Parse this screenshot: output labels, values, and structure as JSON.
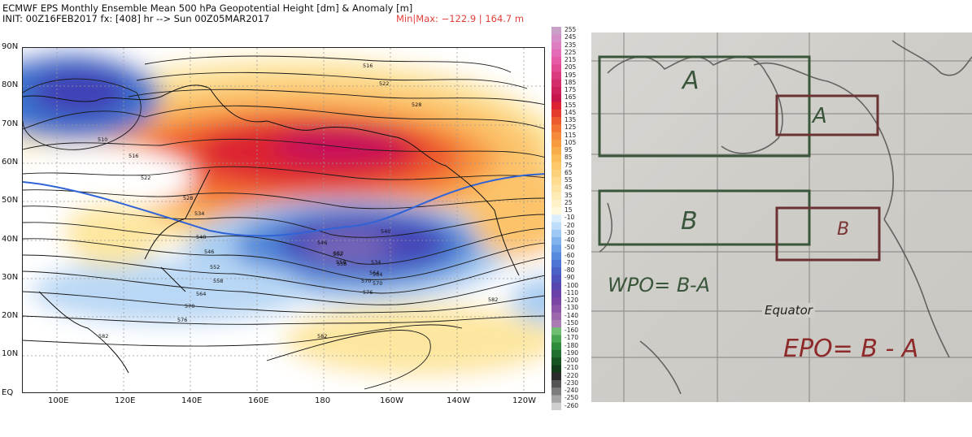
{
  "header": {
    "title": "ECMWF EPS Monthly Ensemble Mean 500 hPa Geopotential Height [dm] & Anomaly [m]",
    "init_line": "INIT: 00Z16FEB2017  fx: [408] hr --> Sun 00Z05MAR2017",
    "minmax": "Min|Max: −122.9 | 164.7 m"
  },
  "map": {
    "lat_labels": [
      "90N",
      "80N",
      "70N",
      "60N",
      "50N",
      "40N",
      "30N",
      "20N",
      "10N",
      "EQ"
    ],
    "lon_labels": [
      "100E",
      "120E",
      "140E",
      "160E",
      "180",
      "160W",
      "140W",
      "120W"
    ],
    "contour_labels": [
      "516",
      "522",
      "528",
      "510",
      "516",
      "522",
      "528",
      "534",
      "540",
      "546",
      "552",
      "558",
      "564",
      "570",
      "576",
      "582",
      "582",
      "540",
      "534",
      "552",
      "558",
      "564",
      "570",
      "576",
      "582",
      "546",
      "552",
      "558",
      "564",
      "570"
    ]
  },
  "colorbar": {
    "labels": [
      "255",
      "245",
      "235",
      "225",
      "215",
      "205",
      "195",
      "185",
      "175",
      "165",
      "155",
      "145",
      "135",
      "125",
      "115",
      "105",
      "95",
      "85",
      "75",
      "65",
      "55",
      "45",
      "35",
      "25",
      "15",
      "-10",
      "-20",
      "-30",
      "-40",
      "-50",
      "-60",
      "-70",
      "-80",
      "-90",
      "-100",
      "-110",
      "-120",
      "-130",
      "-140",
      "-150",
      "-160",
      "-170",
      "-180",
      "-190",
      "-200",
      "-210",
      "-220",
      "-230",
      "-240",
      "-250",
      "-260"
    ]
  },
  "sketch": {
    "box_a_left": "A",
    "box_a_right": "A",
    "box_b_left": "B",
    "box_b_right": "B",
    "wpo_formula": "WPO= B-A",
    "equator_label": "Equator",
    "epo_formula": "EPO= B - A"
  }
}
